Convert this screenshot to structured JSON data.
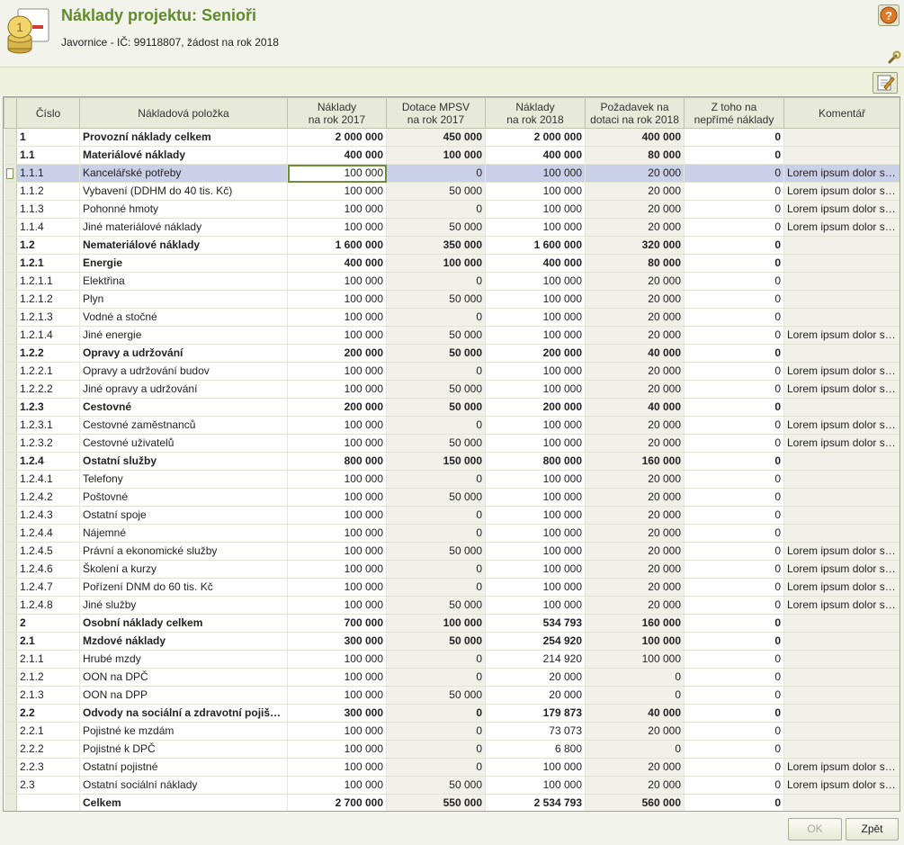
{
  "header": {
    "title": "Náklady projektu: Senioři",
    "subtitle": "Javornice - IČ: 99118807, žádost na rok 2018"
  },
  "table": {
    "columns": [
      "Číslo",
      "Nákladová položka",
      "Náklady\nna rok 2017",
      "Dotace MPSV\nna rok 2017",
      "Náklady\nna rok 2018",
      "Požadavek na\ndotaci na rok 2018",
      "Z toho na\nnepřímé náklady",
      "Komentář"
    ],
    "rows": [
      {
        "id": "1",
        "name": "Provozní náklady celkem",
        "n2017": "2 000 000",
        "d2017": "450 000",
        "n2018": "2 000 000",
        "pozad": "400 000",
        "neprime": "0",
        "koment": "",
        "bold": true
      },
      {
        "id": "1.1",
        "name": "Materiálové náklady",
        "n2017": "400 000",
        "d2017": "100 000",
        "n2018": "400 000",
        "pozad": "80 000",
        "neprime": "0",
        "koment": "",
        "bold": true
      },
      {
        "id": "1.1.1",
        "name": "Kancelářské potřeby",
        "n2017": "100 000",
        "d2017": "0",
        "n2018": "100 000",
        "pozad": "20 000",
        "neprime": "0",
        "koment": "Lorem ipsum dolor sit amet",
        "active": true
      },
      {
        "id": "1.1.2",
        "name": "Vybavení (DDHM do 40 tis. Kč)",
        "n2017": "100 000",
        "d2017": "50 000",
        "n2018": "100 000",
        "pozad": "20 000",
        "neprime": "0",
        "koment": "Lorem ipsum dolor sit amet"
      },
      {
        "id": "1.1.3",
        "name": "Pohonné hmoty",
        "n2017": "100 000",
        "d2017": "0",
        "n2018": "100 000",
        "pozad": "20 000",
        "neprime": "0",
        "koment": "Lorem ipsum dolor sit amet"
      },
      {
        "id": "1.1.4",
        "name": "Jiné materiálové náklady",
        "n2017": "100 000",
        "d2017": "50 000",
        "n2018": "100 000",
        "pozad": "20 000",
        "neprime": "0",
        "koment": "Lorem ipsum dolor sit amet"
      },
      {
        "id": "1.2",
        "name": "Nemateriálové náklady",
        "n2017": "1 600 000",
        "d2017": "350 000",
        "n2018": "1 600 000",
        "pozad": "320 000",
        "neprime": "0",
        "koment": "",
        "bold": true
      },
      {
        "id": "1.2.1",
        "name": "Energie",
        "n2017": "400 000",
        "d2017": "100 000",
        "n2018": "400 000",
        "pozad": "80 000",
        "neprime": "0",
        "koment": "",
        "bold": true
      },
      {
        "id": "1.2.1.1",
        "name": "Elektřina",
        "n2017": "100 000",
        "d2017": "0",
        "n2018": "100 000",
        "pozad": "20 000",
        "neprime": "0",
        "koment": ""
      },
      {
        "id": "1.2.1.2",
        "name": "Plyn",
        "n2017": "100 000",
        "d2017": "50 000",
        "n2018": "100 000",
        "pozad": "20 000",
        "neprime": "0",
        "koment": ""
      },
      {
        "id": "1.2.1.3",
        "name": "Vodné a stočné",
        "n2017": "100 000",
        "d2017": "0",
        "n2018": "100 000",
        "pozad": "20 000",
        "neprime": "0",
        "koment": ""
      },
      {
        "id": "1.2.1.4",
        "name": "Jiné energie",
        "n2017": "100 000",
        "d2017": "50 000",
        "n2018": "100 000",
        "pozad": "20 000",
        "neprime": "0",
        "koment": "Lorem ipsum dolor sit amet"
      },
      {
        "id": "1.2.2",
        "name": "Opravy a udržování",
        "n2017": "200 000",
        "d2017": "50 000",
        "n2018": "200 000",
        "pozad": "40 000",
        "neprime": "0",
        "koment": "",
        "bold": true
      },
      {
        "id": "1.2.2.1",
        "name": "Opravy a udržování budov",
        "n2017": "100 000",
        "d2017": "0",
        "n2018": "100 000",
        "pozad": "20 000",
        "neprime": "0",
        "koment": "Lorem ipsum dolor sit amet"
      },
      {
        "id": "1.2.2.2",
        "name": "Jiné opravy a udržování",
        "n2017": "100 000",
        "d2017": "50 000",
        "n2018": "100 000",
        "pozad": "20 000",
        "neprime": "0",
        "koment": "Lorem ipsum dolor sit amet"
      },
      {
        "id": "1.2.3",
        "name": "Cestovné",
        "n2017": "200 000",
        "d2017": "50 000",
        "n2018": "200 000",
        "pozad": "40 000",
        "neprime": "0",
        "koment": "",
        "bold": true
      },
      {
        "id": "1.2.3.1",
        "name": "Cestovné zaměstnanců",
        "n2017": "100 000",
        "d2017": "0",
        "n2018": "100 000",
        "pozad": "20 000",
        "neprime": "0",
        "koment": "Lorem ipsum dolor sit amet"
      },
      {
        "id": "1.2.3.2",
        "name": "Cestovné uživatelů",
        "n2017": "100 000",
        "d2017": "50 000",
        "n2018": "100 000",
        "pozad": "20 000",
        "neprime": "0",
        "koment": "Lorem ipsum dolor sit amet"
      },
      {
        "id": "1.2.4",
        "name": "Ostatní služby",
        "n2017": "800 000",
        "d2017": "150 000",
        "n2018": "800 000",
        "pozad": "160 000",
        "neprime": "0",
        "koment": "",
        "bold": true
      },
      {
        "id": "1.2.4.1",
        "name": "Telefony",
        "n2017": "100 000",
        "d2017": "0",
        "n2018": "100 000",
        "pozad": "20 000",
        "neprime": "0",
        "koment": ""
      },
      {
        "id": "1.2.4.2",
        "name": "Poštovné",
        "n2017": "100 000",
        "d2017": "50 000",
        "n2018": "100 000",
        "pozad": "20 000",
        "neprime": "0",
        "koment": ""
      },
      {
        "id": "1.2.4.3",
        "name": "Ostatní spoje",
        "n2017": "100 000",
        "d2017": "0",
        "n2018": "100 000",
        "pozad": "20 000",
        "neprime": "0",
        "koment": ""
      },
      {
        "id": "1.2.4.4",
        "name": "Nájemné",
        "n2017": "100 000",
        "d2017": "0",
        "n2018": "100 000",
        "pozad": "20 000",
        "neprime": "0",
        "koment": ""
      },
      {
        "id": "1.2.4.5",
        "name": "Právní a ekonomické služby",
        "n2017": "100 000",
        "d2017": "50 000",
        "n2018": "100 000",
        "pozad": "20 000",
        "neprime": "0",
        "koment": "Lorem ipsum dolor sit amet"
      },
      {
        "id": "1.2.4.6",
        "name": "Školení a kurzy",
        "n2017": "100 000",
        "d2017": "0",
        "n2018": "100 000",
        "pozad": "20 000",
        "neprime": "0",
        "koment": "Lorem ipsum dolor sit amet"
      },
      {
        "id": "1.2.4.7",
        "name": "Pořízení DNM do 60 tis. Kč",
        "n2017": "100 000",
        "d2017": "0",
        "n2018": "100 000",
        "pozad": "20 000",
        "neprime": "0",
        "koment": "Lorem ipsum dolor sit amet"
      },
      {
        "id": "1.2.4.8",
        "name": "Jiné služby",
        "n2017": "100 000",
        "d2017": "50 000",
        "n2018": "100 000",
        "pozad": "20 000",
        "neprime": "0",
        "koment": "Lorem ipsum dolor sit amet"
      },
      {
        "id": "2",
        "name": "Osobní náklady celkem",
        "n2017": "700 000",
        "d2017": "100 000",
        "n2018": "534 793",
        "pozad": "160 000",
        "neprime": "0",
        "koment": "",
        "bold": true
      },
      {
        "id": "2.1",
        "name": "Mzdové náklady",
        "n2017": "300 000",
        "d2017": "50 000",
        "n2018": "254 920",
        "pozad": "100 000",
        "neprime": "0",
        "koment": "",
        "bold": true
      },
      {
        "id": "2.1.1",
        "name": "Hrubé mzdy",
        "n2017": "100 000",
        "d2017": "0",
        "n2018": "214 920",
        "pozad": "100 000",
        "neprime": "0",
        "koment": ""
      },
      {
        "id": "2.1.2",
        "name": "OON na DPČ",
        "n2017": "100 000",
        "d2017": "0",
        "n2018": "20 000",
        "pozad": "0",
        "neprime": "0",
        "koment": ""
      },
      {
        "id": "2.1.3",
        "name": "OON na DPP",
        "n2017": "100 000",
        "d2017": "50 000",
        "n2018": "20 000",
        "pozad": "0",
        "neprime": "0",
        "koment": ""
      },
      {
        "id": "2.2",
        "name": "Odvody na sociální a zdravotní pojištění",
        "n2017": "300 000",
        "d2017": "0",
        "n2018": "179 873",
        "pozad": "40 000",
        "neprime": "0",
        "koment": "",
        "bold": true
      },
      {
        "id": "2.2.1",
        "name": "Pojistné ke mzdám",
        "n2017": "100 000",
        "d2017": "0",
        "n2018": "73 073",
        "pozad": "20 000",
        "neprime": "0",
        "koment": ""
      },
      {
        "id": "2.2.2",
        "name": "Pojistné k DPČ",
        "n2017": "100 000",
        "d2017": "0",
        "n2018": "6 800",
        "pozad": "0",
        "neprime": "0",
        "koment": ""
      },
      {
        "id": "2.2.3",
        "name": "Ostatní pojistné",
        "n2017": "100 000",
        "d2017": "0",
        "n2018": "100 000",
        "pozad": "20 000",
        "neprime": "0",
        "koment": "Lorem ipsum dolor sit amet"
      },
      {
        "id": "2.3",
        "name": "Ostatní sociální náklady",
        "n2017": "100 000",
        "d2017": "50 000",
        "n2018": "100 000",
        "pozad": "20 000",
        "neprime": "0",
        "koment": "Lorem ipsum dolor sit amet"
      },
      {
        "id": "",
        "name": "Celkem",
        "n2017": "2 700 000",
        "d2017": "550 000",
        "n2018": "2 534 793",
        "pozad": "560 000",
        "neprime": "0",
        "koment": "",
        "bold": true
      }
    ]
  },
  "footer": {
    "ok_label": "OK",
    "back_label": "Zpět"
  },
  "colors": {
    "title": "#5f8c2a",
    "active_row": "#c9d0e8",
    "header_bg": "#e7e9d9"
  },
  "icons": [
    "coins-icon",
    "help-icon",
    "wrench-icon",
    "edit-icon"
  ]
}
